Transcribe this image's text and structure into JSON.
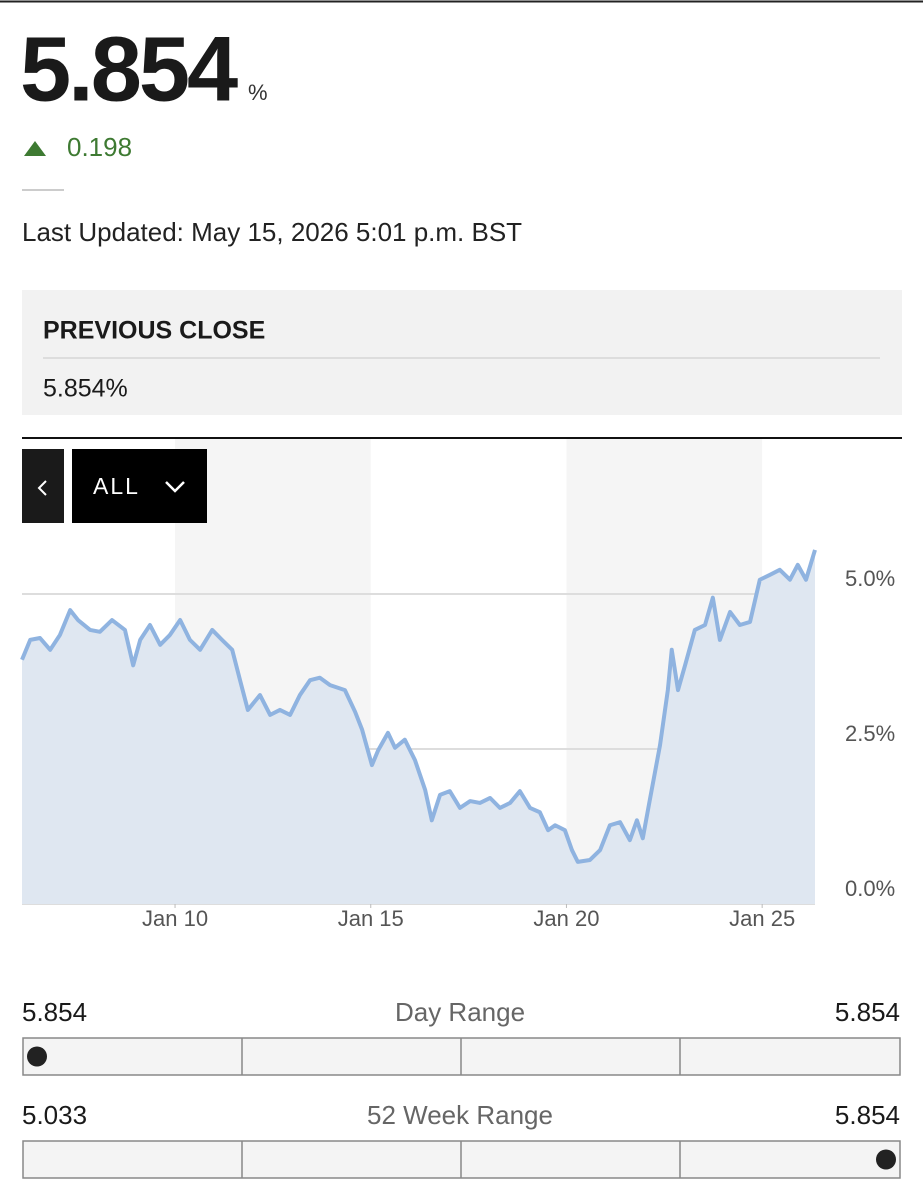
{
  "header": {
    "price": 5.854,
    "unit": "%",
    "change": 0.198,
    "last_updated": "Last Updated: May 15, 2026 5:01 p.m. BST"
  },
  "previous_close": {
    "label": "PREVIOUS CLOSE",
    "value": "5.854%"
  },
  "controls": {
    "range": "ALL"
  },
  "chart_data": {
    "type": "line",
    "color": "#8fb3e0",
    "fill": "#dfe7f1",
    "grid": true,
    "x": [
      6.09,
      6.3,
      6.55,
      6.81,
      7.06,
      7.32,
      7.52,
      7.83,
      8.08,
      8.39,
      8.72,
      8.93,
      9.11,
      9.36,
      9.62,
      9.87,
      10.13,
      10.38,
      10.64,
      10.95,
      11.2,
      11.46,
      11.66,
      11.86,
      12.17,
      12.43,
      12.68,
      12.94,
      13.19,
      13.45,
      13.7,
      13.96,
      14.34,
      14.6,
      14.78,
      15.03,
      15.19,
      15.44,
      15.62,
      15.87,
      16.13,
      16.39,
      16.56,
      16.77,
      17.02,
      17.28,
      17.54,
      17.79,
      18.05,
      18.3,
      18.56,
      18.81,
      19.07,
      19.32,
      19.53,
      19.71,
      19.96,
      20.14,
      20.29,
      20.6,
      20.86,
      21.11,
      21.37,
      21.62,
      21.8,
      21.95,
      22.13,
      22.39,
      22.59,
      22.69,
      22.85,
      23.03,
      23.28,
      23.54,
      23.74,
      23.92,
      24.18,
      24.43,
      24.69,
      24.94,
      25.2,
      25.45,
      25.71,
      25.91,
      26.12,
      26.35
    ],
    "values": [
      3.94,
      4.26,
      4.29,
      4.1,
      4.34,
      4.74,
      4.58,
      4.42,
      4.39,
      4.58,
      4.42,
      3.85,
      4.26,
      4.5,
      4.18,
      4.34,
      4.58,
      4.26,
      4.1,
      4.42,
      4.26,
      4.1,
      3.61,
      3.13,
      3.37,
      3.05,
      3.13,
      3.05,
      3.37,
      3.61,
      3.65,
      3.53,
      3.45,
      3.1,
      2.81,
      2.24,
      2.48,
      2.76,
      2.52,
      2.65,
      2.32,
      1.84,
      1.35,
      1.76,
      1.82,
      1.55,
      1.66,
      1.63,
      1.71,
      1.55,
      1.63,
      1.82,
      1.55,
      1.48,
      1.19,
      1.27,
      1.19,
      0.87,
      0.68,
      0.71,
      0.87,
      1.27,
      1.32,
      1.03,
      1.35,
      1.06,
      1.68,
      2.56,
      3.45,
      4.1,
      3.45,
      3.85,
      4.42,
      4.5,
      4.94,
      4.26,
      4.71,
      4.5,
      4.55,
      5.23,
      5.31,
      5.39,
      5.23,
      5.47,
      5.23,
      5.71
    ],
    "xlim": [
      6.09,
      26.35
    ],
    "xticks": [
      {
        "value": 10,
        "label": "Jan 10"
      },
      {
        "value": 15,
        "label": "Jan 15"
      },
      {
        "value": 20,
        "label": "Jan 20"
      },
      {
        "value": 25,
        "label": "Jan 25"
      }
    ],
    "ylim": [
      0,
      7.5
    ],
    "yticks": [
      {
        "value": 0,
        "label": "0.0%"
      },
      {
        "value": 2.5,
        "label": "2.5%"
      },
      {
        "value": 5,
        "label": "5.0%"
      }
    ]
  },
  "ranges": [
    {
      "low": 5.854,
      "label": "Day Range",
      "high": 5.854
    },
    {
      "low": 5.033,
      "label": "52 Week Range",
      "high": 5.854
    }
  ]
}
